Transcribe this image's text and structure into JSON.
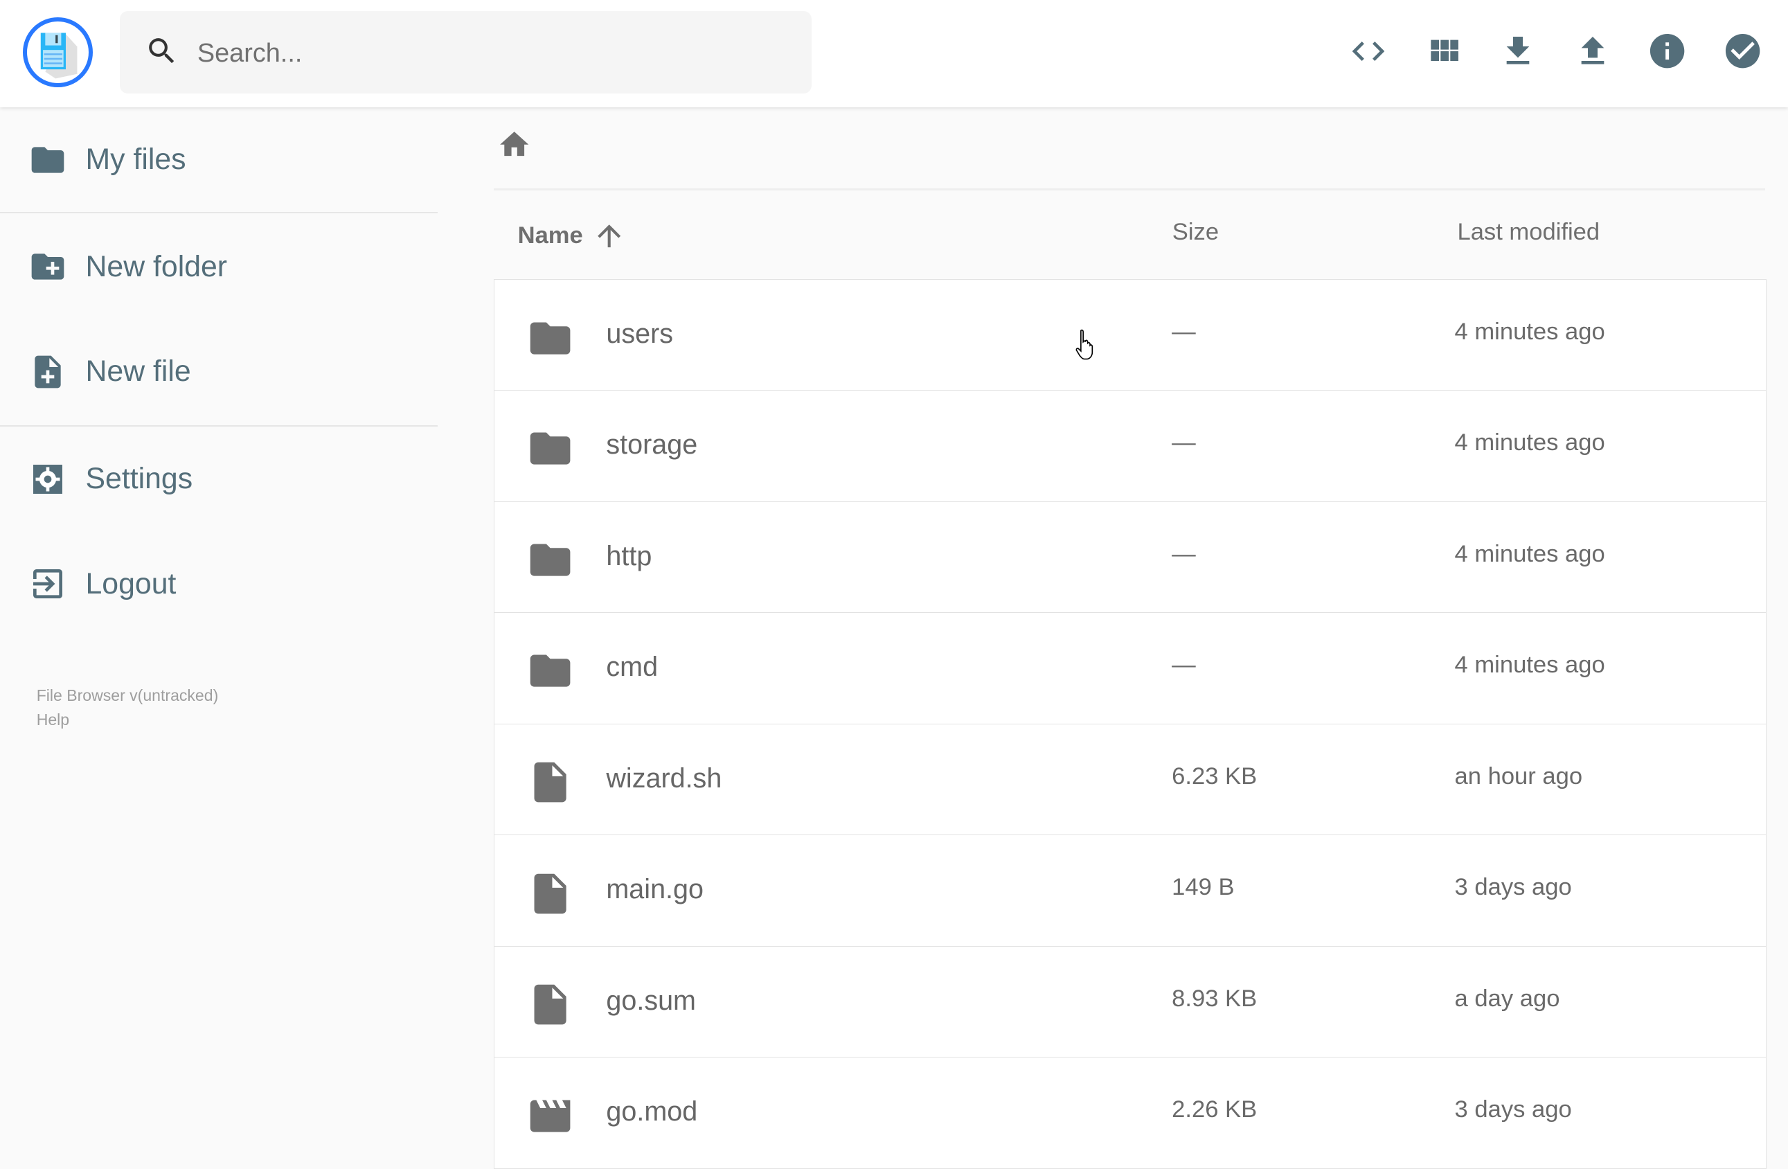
{
  "header": {
    "search_placeholder": "Search...",
    "actions": [
      {
        "name": "code-view-icon",
        "label": "Toggle view"
      },
      {
        "name": "grid-icon",
        "label": "Switch view"
      },
      {
        "name": "download-icon",
        "label": "Download"
      },
      {
        "name": "upload-icon",
        "label": "Upload"
      },
      {
        "name": "info-icon",
        "label": "Info"
      },
      {
        "name": "check-circle-icon",
        "label": "Select multiple"
      }
    ]
  },
  "sidebar": {
    "items": [
      {
        "label": "My files",
        "icon": "folder-icon"
      },
      {
        "label": "New folder",
        "icon": "create-new-folder-icon"
      },
      {
        "label": "New file",
        "icon": "note-add-icon"
      },
      {
        "label": "Settings",
        "icon": "settings-icon"
      },
      {
        "label": "Logout",
        "icon": "logout-icon"
      }
    ],
    "footer": {
      "version": "File Browser v(untracked)",
      "help": "Help"
    }
  },
  "listing": {
    "columns": {
      "name": "Name",
      "size": "Size",
      "modified": "Last modified"
    },
    "sort": {
      "column": "name",
      "direction": "ascending"
    },
    "files": [
      {
        "name": "users",
        "type": "folder",
        "size": "—",
        "modified": "4 minutes ago"
      },
      {
        "name": "storage",
        "type": "folder",
        "size": "—",
        "modified": "4 minutes ago"
      },
      {
        "name": "http",
        "type": "folder",
        "size": "—",
        "modified": "4 minutes ago"
      },
      {
        "name": "cmd",
        "type": "folder",
        "size": "—",
        "modified": "4 minutes ago"
      },
      {
        "name": "wizard.sh",
        "type": "file",
        "size": "6.23 KB",
        "modified": "an hour ago"
      },
      {
        "name": "main.go",
        "type": "file",
        "size": "149 B",
        "modified": "3 days ago"
      },
      {
        "name": "go.sum",
        "type": "file",
        "size": "8.93 KB",
        "modified": "a day ago"
      },
      {
        "name": "go.mod",
        "type": "video",
        "size": "2.26 KB",
        "modified": "3 days ago"
      }
    ]
  },
  "colors": {
    "accent": "#2979ff",
    "icon": "#546e7a",
    "file_icon": "#707070"
  }
}
